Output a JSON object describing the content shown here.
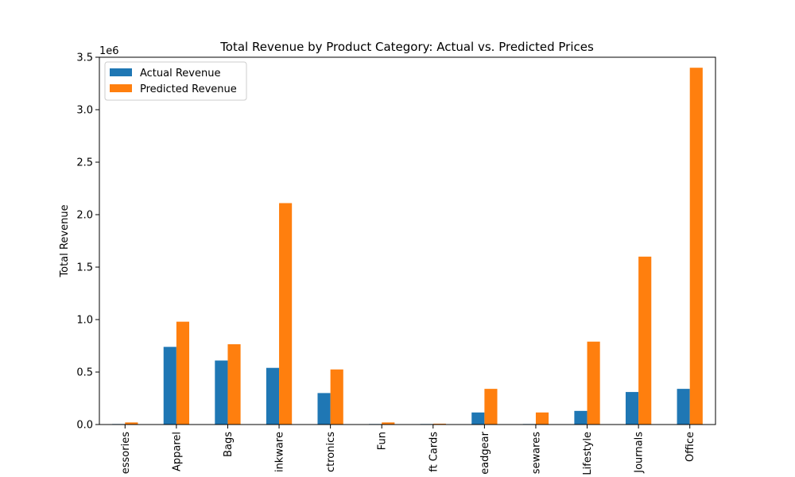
{
  "chart_data": {
    "type": "bar",
    "title": "Total Revenue by Product Category: Actual vs. Predicted Prices",
    "xlabel": "",
    "ylabel": "Total Revenue",
    "y_scale_label": "1e6",
    "ylim": [
      0,
      3.5
    ],
    "yticks": [
      0.0,
      0.5,
      1.0,
      1.5,
      2.0,
      2.5,
      3.0,
      3.5
    ],
    "ytick_labels": [
      "0.0",
      "0.5",
      "1.0",
      "1.5",
      "2.0",
      "2.5",
      "3.0",
      "3.5"
    ],
    "grid": false,
    "legend_position": "top-left",
    "categories": [
      "essories",
      "Apparel",
      "Bags",
      "inkware",
      "ctronics",
      "Fun",
      "ft Cards",
      "eadgear",
      "sewares",
      "Lifestyle",
      "Journals",
      "Office"
    ],
    "series": [
      {
        "name": "Actual Revenue",
        "color": "#1f77b4",
        "values": [
          0.005,
          0.74,
          0.61,
          0.54,
          0.3,
          0.005,
          0.005,
          0.115,
          0.005,
          0.13,
          0.31,
          0.34
        ]
      },
      {
        "name": "Predicted Revenue",
        "color": "#ff7f0e",
        "values": [
          0.02,
          0.98,
          0.765,
          2.11,
          0.525,
          0.02,
          0.008,
          0.34,
          0.115,
          0.79,
          1.6,
          3.4
        ]
      }
    ]
  }
}
